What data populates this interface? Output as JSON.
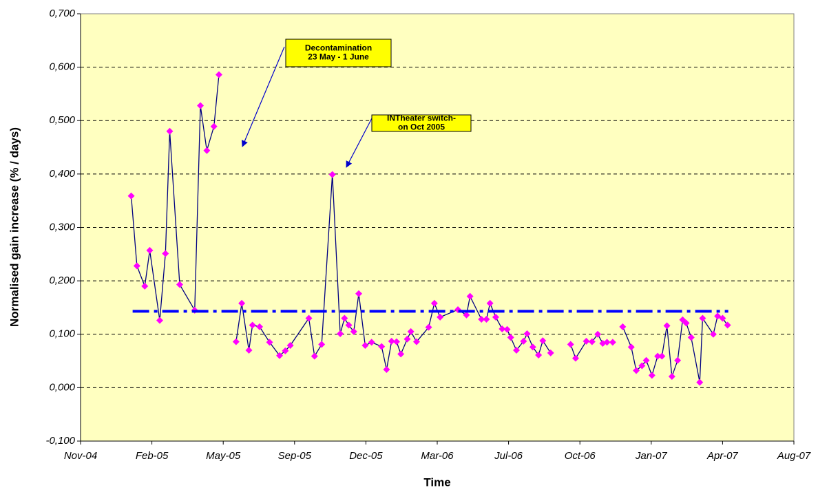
{
  "chart_data": {
    "type": "line",
    "x_label": "Time",
    "y_label": "Normalised gain increase (% / days)",
    "xlim": [
      38300,
      39300
    ],
    "xticks": [
      {
        "value": 38300,
        "label": "Nov-04"
      },
      {
        "value": 38400,
        "label": "Feb-05"
      },
      {
        "value": 38500,
        "label": "May-05"
      },
      {
        "value": 38600,
        "label": "Sep-05"
      },
      {
        "value": 38700,
        "label": "Dec-05"
      },
      {
        "value": 38800,
        "label": "Mar-06"
      },
      {
        "value": 38900,
        "label": "Jul-06"
      },
      {
        "value": 39000,
        "label": "Oct-06"
      },
      {
        "value": 39100,
        "label": "Jan-07"
      },
      {
        "value": 39200,
        "label": "Apr-07"
      },
      {
        "value": 39300,
        "label": "Aug-07"
      }
    ],
    "ylim": [
      -0.1,
      0.7
    ],
    "yticks": [
      {
        "value": -0.1,
        "label": "-0,100"
      },
      {
        "value": 0,
        "label": "0,000"
      },
      {
        "value": 0.1,
        "label": "0,100"
      },
      {
        "value": 0.2,
        "label": "0,200"
      },
      {
        "value": 0.3,
        "label": "0,300"
      },
      {
        "value": 0.4,
        "label": "0,400"
      },
      {
        "value": 0.5,
        "label": "0,500"
      },
      {
        "value": 0.6,
        "label": "0,600"
      },
      {
        "value": 0.7,
        "label": "0,700"
      }
    ],
    "grid": true,
    "plot_background": "#ffffc0",
    "series": [
      {
        "color": "#000080",
        "marker_color": "#ff00ff",
        "marker": "diamond",
        "x": [
          38371,
          38379,
          38390,
          38397,
          38411,
          38419,
          38425,
          38439,
          38460,
          38468,
          38477,
          38487,
          38494,
          null,
          38518,
          38526,
          38536,
          38541,
          38551,
          38565,
          38579,
          38587,
          38594,
          38620,
          38628,
          38638,
          38653,
          38664,
          38670,
          38676,
          38683,
          38690,
          38699,
          38708,
          38722,
          38729,
          38736,
          38743,
          38749,
          38758,
          38763,
          38771,
          38788,
          38796,
          38804,
          38829,
          38841,
          38846,
          38862,
          38869,
          38874,
          38882,
          38891,
          38898,
          38903,
          38911,
          38921,
          38926,
          38934,
          38942,
          38948,
          38959,
          null,
          38987,
          38994,
          39009,
          39017,
          39025,
          39032,
          39038,
          39046,
          null,
          39060,
          39072,
          39079,
          39087,
          39093,
          39101,
          39109,
          39115,
          39122,
          39129,
          39137,
          39144,
          39149,
          39156,
          39168,
          39172,
          39187,
          39193,
          39200,
          39207
        ],
        "values": [
          0.359,
          0.228,
          0.19,
          0.257,
          0.126,
          0.251,
          0.48,
          0.193,
          0.145,
          0.528,
          0.444,
          0.489,
          0.586,
          null,
          0.086,
          0.158,
          0.07,
          0.117,
          0.114,
          0.085,
          0.06,
          0.069,
          0.079,
          0.13,
          0.059,
          0.081,
          0.399,
          0.101,
          0.13,
          0.117,
          0.105,
          0.176,
          0.079,
          0.085,
          0.077,
          0.034,
          0.087,
          0.086,
          0.063,
          0.091,
          0.105,
          0.086,
          0.113,
          0.158,
          0.132,
          0.146,
          0.136,
          0.171,
          0.128,
          0.128,
          0.158,
          0.132,
          0.11,
          0.109,
          0.094,
          0.07,
          0.087,
          0.101,
          0.076,
          0.061,
          0.088,
          0.065,
          null,
          0.081,
          0.055,
          0.087,
          0.086,
          0.1,
          0.083,
          0.085,
          0.085,
          null,
          0.114,
          0.076,
          0.032,
          0.041,
          0.051,
          0.023,
          0.059,
          0.059,
          0.116,
          0.021,
          0.051,
          0.127,
          0.121,
          0.094,
          0.01,
          0.13,
          0.1,
          0.134,
          0.13,
          0.117
        ]
      },
      {
        "color": "#0000ff",
        "dash": "dash-dot",
        "x": [
          38373,
          39208
        ],
        "values": [
          0.143,
          0.143
        ]
      }
    ],
    "annotations": [
      {
        "lines": [
          "Decontamination",
          "23 May - 1 June"
        ]
      },
      {
        "lines": [
          "INTheater switch-",
          "on Oct 2005"
        ]
      }
    ]
  }
}
